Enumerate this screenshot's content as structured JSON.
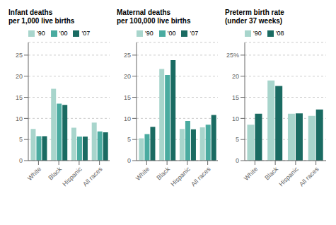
{
  "chart_data": [
    {
      "type": "bar",
      "title": "Infant deaths\nper 1,000 live births",
      "categories": [
        "White",
        "Black",
        "Hispanic",
        "All races"
      ],
      "series": [
        {
          "name": "'90",
          "color": "#a8d5cc",
          "values": [
            7.5,
            17.0,
            7.8,
            9.0
          ]
        },
        {
          "name": "'00",
          "color": "#4aaba0",
          "values": [
            5.8,
            13.5,
            5.7,
            6.9
          ]
        },
        {
          "name": "'07",
          "color": "#1a6b62",
          "values": [
            5.8,
            13.2,
            5.7,
            6.7
          ]
        }
      ],
      "ylim": [
        0,
        28
      ],
      "yticks": [
        0,
        5,
        10,
        15,
        20,
        25
      ],
      "grid": true,
      "legend": "top"
    },
    {
      "type": "bar",
      "title": "Maternal deaths\nper 100,000 live births",
      "categories": [
        "White",
        "Black",
        "Hispanic",
        "All races"
      ],
      "series": [
        {
          "name": "'90",
          "color": "#a8d5cc",
          "values": [
            5.3,
            21.7,
            7.5,
            7.9
          ]
        },
        {
          "name": "'00",
          "color": "#4aaba0",
          "values": [
            6.3,
            20.3,
            9.4,
            8.5
          ]
        },
        {
          "name": "'07",
          "color": "#1a6b62",
          "values": [
            8.0,
            23.8,
            7.4,
            10.8
          ]
        }
      ],
      "ylim": [
        0,
        28
      ],
      "yticks": [
        0,
        5,
        10,
        15,
        20,
        25
      ],
      "grid": true,
      "legend": "top"
    },
    {
      "type": "bar",
      "title": "Preterm birth rate\n(under 37 weeks)",
      "categories": [
        "White",
        "Black",
        "Hispanic",
        "All races"
      ],
      "series": [
        {
          "name": "'90",
          "color": "#a8d5cc",
          "values": [
            8.5,
            19.0,
            11.1,
            10.6
          ]
        },
        {
          "name": "'08",
          "color": "#1a6b62",
          "values": [
            11.1,
            17.7,
            11.2,
            12.1
          ]
        }
      ],
      "ylim": [
        0,
        28
      ],
      "yticks": [
        0,
        5,
        10,
        15,
        20,
        {
          "value": 25,
          "label": "25%"
        }
      ],
      "grid": true,
      "legend": "top"
    }
  ]
}
